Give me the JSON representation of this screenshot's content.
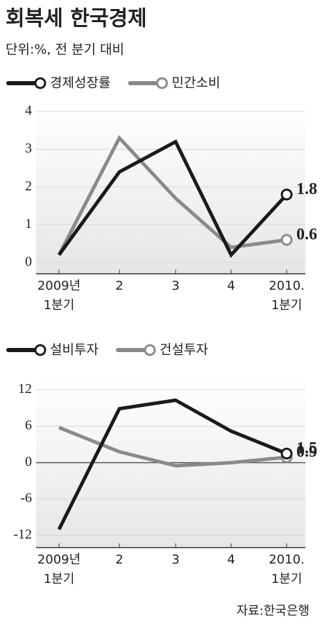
{
  "title": "회복세 한국경제",
  "subtitle": "단위:%, 전 분기 대비",
  "source": "자료:한국은행",
  "chart_data": [
    {
      "type": "line",
      "categories": [
        "2009년\n1분기",
        "2",
        "3",
        "4",
        "2010.\n1분기"
      ],
      "series": [
        {
          "name": "경제성장률",
          "color": "#1a1a1a",
          "values": [
            0.2,
            2.4,
            3.2,
            0.2,
            1.8
          ]
        },
        {
          "name": "민간소비",
          "color": "#8a8a8a",
          "values": [
            0.2,
            3.3,
            1.7,
            0.4,
            0.6
          ]
        }
      ],
      "ylim": [
        -0.3,
        4.2
      ],
      "yticks": [
        0,
        1,
        2,
        3,
        4
      ],
      "grid": true,
      "end_labels": true
    },
    {
      "type": "line",
      "categories": [
        "2009년\n1분기",
        "2",
        "3",
        "4",
        "2010.\n1분기"
      ],
      "series": [
        {
          "name": "설비투자",
          "color": "#1a1a1a",
          "values": [
            -11.0,
            8.9,
            10.3,
            5.2,
            1.5
          ]
        },
        {
          "name": "건설투자",
          "color": "#8a8a8a",
          "values": [
            5.8,
            1.8,
            -0.5,
            0.0,
            0.9
          ]
        }
      ],
      "ylim": [
        -14,
        14
      ],
      "yticks": [
        12,
        6,
        0,
        -6,
        -12
      ],
      "grid": true,
      "zero_line": true,
      "end_labels": true
    }
  ]
}
